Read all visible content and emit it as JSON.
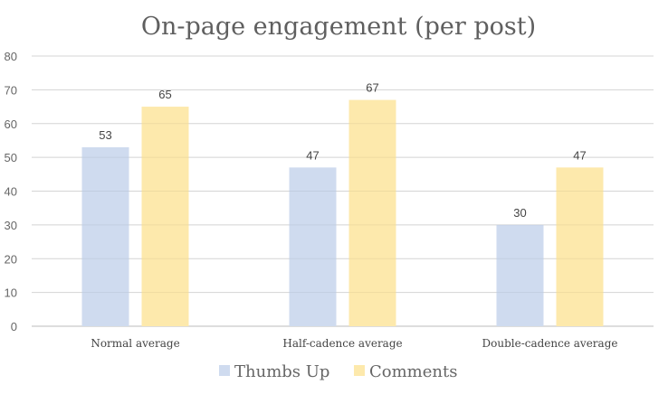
{
  "chart_data": {
    "type": "bar",
    "title": "On-page engagement (per post)",
    "categories": [
      "Normal average",
      "Half-cadence average",
      "Double-cadence average"
    ],
    "series": [
      {
        "name": "Thumbs Up",
        "values": [
          53,
          47,
          30
        ],
        "color": "#cfdbef"
      },
      {
        "name": "Comments",
        "values": [
          65,
          67,
          47
        ],
        "color": "#fde9ac"
      }
    ],
    "xlabel": "",
    "ylabel": "",
    "ylim": [
      0,
      80
    ],
    "yticks": [
      0,
      10,
      20,
      30,
      40,
      50,
      60,
      70,
      80
    ],
    "grid": true,
    "legend": "bottom"
  }
}
